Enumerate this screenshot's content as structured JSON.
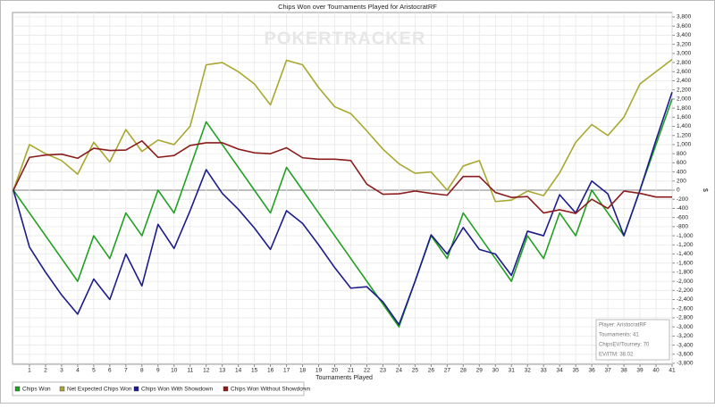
{
  "chart_data": {
    "type": "line",
    "title": "Chips Won over Tournaments Played for AristocratRF",
    "x_label": "Tournaments Played",
    "y_label": "$",
    "watermark": "POKERTRACKER",
    "info_box": [
      "Player: AristocratRF",
      "Tournaments: 41",
      "ChipsEV/Tourney: 70",
      "EV/ITM: 38.02"
    ],
    "grid": true,
    "x": [
      0,
      1,
      2,
      3,
      4,
      5,
      6,
      7,
      8,
      9,
      10,
      11,
      12,
      13,
      14,
      15,
      16,
      17,
      18,
      19,
      20,
      21,
      22,
      23,
      24,
      25,
      26,
      27,
      28,
      29,
      30,
      31,
      32,
      33,
      34,
      35,
      36,
      37,
      38,
      39,
      40,
      41
    ],
    "xlim": [
      0,
      41
    ],
    "xticks": [
      1,
      2,
      3,
      4,
      5,
      6,
      7,
      8,
      9,
      10,
      11,
      12,
      13,
      14,
      15,
      16,
      17,
      18,
      19,
      20,
      21,
      22,
      23,
      24,
      25,
      26,
      27,
      28,
      29,
      30,
      31,
      32,
      33,
      34,
      35,
      36,
      37,
      38,
      39,
      40,
      41
    ],
    "ylim": [
      -3800,
      3800
    ],
    "yticks": [
      {
        "value": 3800,
        "label": "3,800"
      },
      {
        "value": 3600,
        "label": "3,600"
      },
      {
        "value": 3400,
        "label": "3,400"
      },
      {
        "value": 3200,
        "label": "3,200"
      },
      {
        "value": 3000,
        "label": "3,000"
      },
      {
        "value": 2800,
        "label": "2,800"
      },
      {
        "value": 2600,
        "label": "2,600"
      },
      {
        "value": 2400,
        "label": "2,400"
      },
      {
        "value": 2200,
        "label": "2,200"
      },
      {
        "value": 2000,
        "label": "2,000"
      },
      {
        "value": 1800,
        "label": "1,800"
      },
      {
        "value": 1600,
        "label": "1,600"
      },
      {
        "value": 1400,
        "label": "1,400"
      },
      {
        "value": 1200,
        "label": "1,200"
      },
      {
        "value": 1000,
        "label": "1,000"
      },
      800,
      600,
      400,
      200,
      0,
      -200,
      -400,
      -600,
      -800,
      {
        "value": -1000,
        "label": "-1,000"
      },
      {
        "value": -1200,
        "label": "-1,200"
      },
      {
        "value": -1400,
        "label": "-1,400"
      },
      {
        "value": -1600,
        "label": "-1,600"
      },
      {
        "value": -1800,
        "label": "-1,800"
      },
      {
        "value": -2000,
        "label": "-2,000"
      },
      {
        "value": -2200,
        "label": "-2,200"
      },
      {
        "value": -2400,
        "label": "-2,400"
      },
      {
        "value": -2600,
        "label": "-2,600"
      },
      {
        "value": -2800,
        "label": "-2,800"
      },
      {
        "value": -3000,
        "label": "-3,000"
      },
      {
        "value": -3200,
        "label": "-3,200"
      },
      {
        "value": -3400,
        "label": "-3,400"
      },
      {
        "value": -3600,
        "label": "-3,600"
      },
      {
        "value": -3800,
        "label": "-3,800"
      }
    ],
    "series": [
      {
        "name": "Chips Won",
        "color": "#22a022",
        "values": [
          0,
          -500,
          -1000,
          -1500,
          -2000,
          -1000,
          -1500,
          -500,
          -1000,
          0,
          -500,
          500,
          1500,
          1000,
          500,
          0,
          -500,
          500,
          0,
          -500,
          -1000,
          -1500,
          -2000,
          -2500,
          -3000,
          -2000,
          -1000,
          -1500,
          -500,
          -1000,
          -1500,
          -2000,
          -1000,
          -1500,
          -500,
          -1000,
          0,
          -500,
          -1000,
          0,
          1000,
          2000
        ]
      },
      {
        "name": "Net Expected Chips Won",
        "color": "#a8a830",
        "values": [
          0,
          1000,
          800,
          650,
          350,
          1050,
          620,
          1330,
          850,
          1100,
          1000,
          1400,
          2750,
          2800,
          2600,
          2330,
          1870,
          2850,
          2750,
          2250,
          1830,
          1680,
          1300,
          900,
          580,
          370,
          400,
          0,
          530,
          650,
          -250,
          -220,
          -20,
          -120,
          380,
          1050,
          1440,
          1200,
          1600,
          2330,
          2600,
          2870
        ]
      },
      {
        "name": "Chips Won With Showdown",
        "color": "#1c1c8a",
        "values": [
          0,
          -1250,
          -1800,
          -2300,
          -2720,
          -1950,
          -2400,
          -1400,
          -2100,
          -750,
          -1280,
          -450,
          450,
          -70,
          -420,
          -830,
          -1300,
          -450,
          -730,
          -1200,
          -1700,
          -2150,
          -2120,
          -2450,
          -2950,
          -2000,
          -980,
          -1400,
          -820,
          -1300,
          -1400,
          -1870,
          -900,
          -1000,
          -100,
          -500,
          200,
          -80,
          -1000,
          0,
          1100,
          2150
        ]
      },
      {
        "name": "Chips Won Without Showdown",
        "color": "#8b1c1c",
        "values": [
          0,
          720,
          770,
          790,
          700,
          920,
          870,
          880,
          1080,
          720,
          760,
          980,
          1040,
          1040,
          900,
          820,
          800,
          930,
          710,
          680,
          680,
          650,
          130,
          -90,
          -80,
          -20,
          -70,
          -110,
          300,
          300,
          -50,
          -160,
          -140,
          -500,
          -430,
          -510,
          -200,
          -400,
          -20,
          -70,
          -150,
          -150
        ]
      }
    ]
  }
}
